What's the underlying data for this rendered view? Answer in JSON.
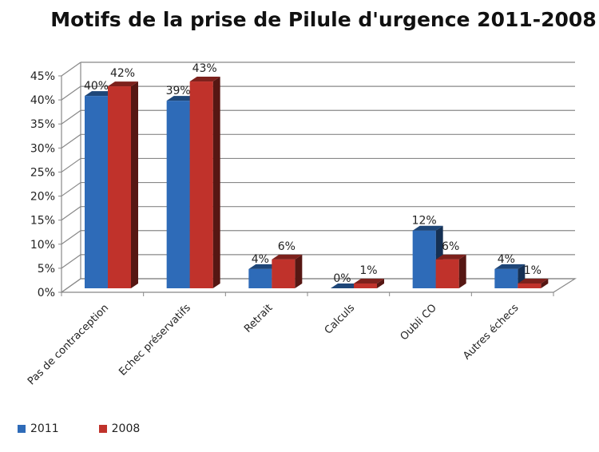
{
  "chart_data": {
    "type": "bar",
    "title": "Motifs de la prise de Pilule d'urgence  2011-2008",
    "categories": [
      "Pas de contraception",
      "Echec préservatifs",
      "Retrait",
      "Calculs",
      "Oubli CO",
      "Autres échecs"
    ],
    "series": [
      {
        "name": "2011",
        "values": [
          40,
          39,
          4,
          0,
          12,
          4
        ],
        "labels": [
          "40%",
          "39%",
          "4%",
          "0%",
          "12%",
          "4%"
        ],
        "color": "#2E6BB8"
      },
      {
        "name": "2008",
        "values": [
          42,
          43,
          6,
          1,
          6,
          1
        ],
        "labels": [
          "42%",
          "43%",
          "6%",
          "1%",
          "6%",
          "1%"
        ],
        "color": "#C0322B"
      }
    ],
    "ylim": [
      0,
      45
    ],
    "yticks": [
      "0%",
      "5%",
      "10%",
      "15%",
      "20%",
      "25%",
      "30%",
      "35%",
      "40%",
      "45%"
    ],
    "grid": true,
    "legend": "bottom-left",
    "style": "3d-clustered-column"
  }
}
